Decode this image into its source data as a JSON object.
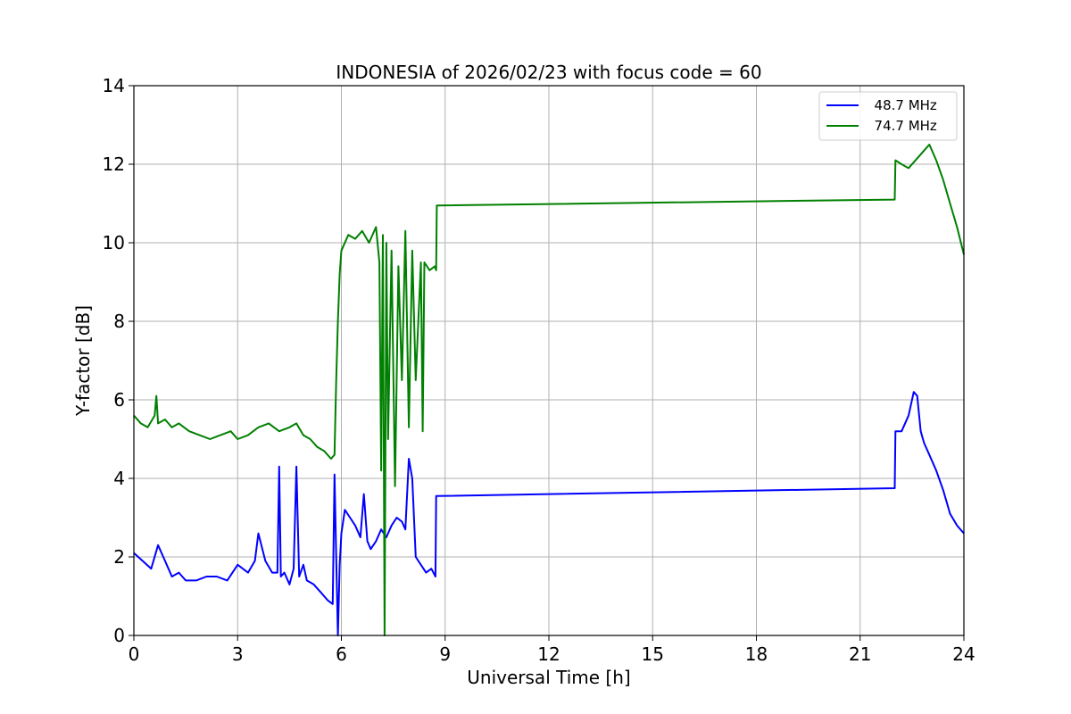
{
  "chart_data": {
    "type": "line",
    "title": "INDONESIA of 2026/02/23 with focus code = 60",
    "xlabel": "Universal Time [h]",
    "ylabel": "Y-factor [dB]",
    "xlim": [
      0,
      24
    ],
    "ylim": [
      0,
      14
    ],
    "xticks": [
      0,
      3,
      6,
      9,
      12,
      15,
      18,
      21,
      24
    ],
    "yticks": [
      0,
      2,
      4,
      6,
      8,
      10,
      12,
      14
    ],
    "grid": true,
    "legend_position": "top-right",
    "series": [
      {
        "name": "  48.7 MHz",
        "color": "#0000ff",
        "x": [
          0.0,
          0.25,
          0.5,
          0.7,
          0.9,
          1.1,
          1.3,
          1.5,
          1.8,
          2.1,
          2.4,
          2.7,
          3.0,
          3.3,
          3.5,
          3.6,
          3.8,
          4.0,
          4.15,
          4.2,
          4.25,
          4.35,
          4.5,
          4.62,
          4.7,
          4.78,
          4.9,
          5.0,
          5.2,
          5.4,
          5.6,
          5.75,
          5.8,
          5.85,
          5.9,
          5.95,
          6.0,
          6.1,
          6.25,
          6.4,
          6.55,
          6.65,
          6.75,
          6.85,
          7.0,
          7.15,
          7.3,
          7.45,
          7.6,
          7.75,
          7.85,
          7.95,
          8.05,
          8.15,
          8.3,
          8.45,
          8.6,
          8.72,
          8.74,
          22.0,
          22.02,
          22.2,
          22.4,
          22.55,
          22.65,
          22.75,
          22.85,
          23.0,
          23.2,
          23.4,
          23.6,
          23.8,
          24.0
        ],
        "y": [
          2.1,
          1.9,
          1.7,
          2.3,
          1.9,
          1.5,
          1.6,
          1.4,
          1.4,
          1.5,
          1.5,
          1.4,
          1.8,
          1.6,
          1.9,
          2.6,
          1.9,
          1.6,
          1.6,
          4.3,
          1.5,
          1.6,
          1.3,
          1.7,
          4.3,
          1.5,
          1.8,
          1.4,
          1.3,
          1.1,
          0.9,
          0.8,
          4.1,
          2.0,
          0.0,
          1.8,
          2.6,
          3.2,
          3.0,
          2.8,
          2.5,
          3.6,
          2.4,
          2.2,
          2.4,
          2.7,
          2.5,
          2.8,
          3.0,
          2.9,
          2.7,
          4.5,
          4.0,
          2.0,
          1.8,
          1.6,
          1.7,
          1.5,
          3.55,
          3.75,
          5.2,
          5.2,
          5.6,
          6.2,
          6.1,
          5.2,
          4.9,
          4.6,
          4.2,
          3.7,
          3.1,
          2.8,
          2.6
        ]
      },
      {
        "name": "  74.7 MHz",
        "color": "#008000",
        "x": [
          0.0,
          0.2,
          0.4,
          0.6,
          0.65,
          0.7,
          0.9,
          1.1,
          1.3,
          1.6,
          1.9,
          2.2,
          2.5,
          2.8,
          3.0,
          3.3,
          3.6,
          3.9,
          4.2,
          4.5,
          4.7,
          4.9,
          5.1,
          5.3,
          5.5,
          5.7,
          5.8,
          5.85,
          5.9,
          5.95,
          6.0,
          6.2,
          6.4,
          6.6,
          6.8,
          7.0,
          7.1,
          7.15,
          7.2,
          7.25,
          7.3,
          7.35,
          7.45,
          7.55,
          7.65,
          7.75,
          7.85,
          7.95,
          8.05,
          8.15,
          8.3,
          8.35,
          8.4,
          8.55,
          8.7,
          8.74,
          8.76,
          22.0,
          22.02,
          22.2,
          22.4,
          22.6,
          22.8,
          23.0,
          23.2,
          23.4,
          23.6,
          23.8,
          24.0
        ],
        "y": [
          5.6,
          5.4,
          5.3,
          5.6,
          6.1,
          5.4,
          5.5,
          5.3,
          5.4,
          5.2,
          5.1,
          5.0,
          5.1,
          5.2,
          5.0,
          5.1,
          5.3,
          5.4,
          5.2,
          5.3,
          5.4,
          5.1,
          5.0,
          4.8,
          4.7,
          4.5,
          4.6,
          6.5,
          8.0,
          9.2,
          9.8,
          10.2,
          10.1,
          10.3,
          10.0,
          10.4,
          9.5,
          4.2,
          10.2,
          0.0,
          10.0,
          5.0,
          9.8,
          3.8,
          9.4,
          6.5,
          10.3,
          5.3,
          9.8,
          6.5,
          9.5,
          5.2,
          9.5,
          9.3,
          9.4,
          9.3,
          10.95,
          11.1,
          12.1,
          12.0,
          11.9,
          12.1,
          12.3,
          12.5,
          12.1,
          11.6,
          11.0,
          10.4,
          9.7
        ]
      }
    ]
  }
}
